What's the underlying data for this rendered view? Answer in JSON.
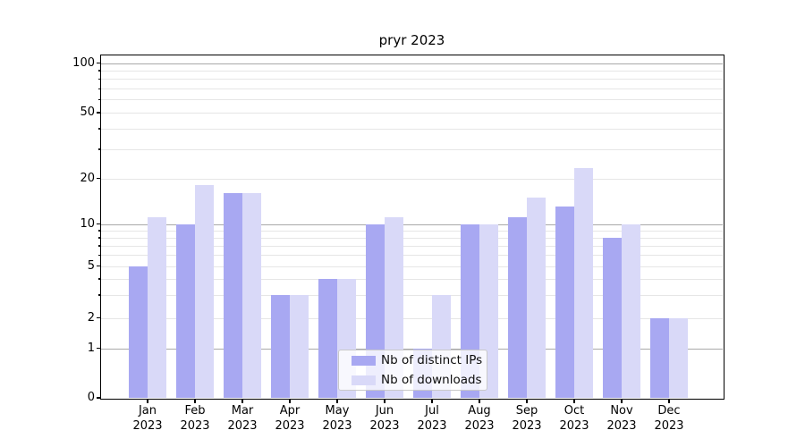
{
  "chart_data": {
    "type": "bar",
    "title": "pryr 2023",
    "categories": [
      "Jan 2023",
      "Feb 2023",
      "Mar 2023",
      "Apr 2023",
      "May 2023",
      "Jun 2023",
      "Jul 2023",
      "Aug 2023",
      "Sep 2023",
      "Oct 2023",
      "Nov 2023",
      "Dec 2023"
    ],
    "x_tick_months": [
      "Jan",
      "Feb",
      "Mar",
      "Apr",
      "May",
      "Jun",
      "Jul",
      "Aug",
      "Sep",
      "Oct",
      "Nov",
      "Dec"
    ],
    "x_tick_year": "2023",
    "series": [
      {
        "name": "Nb of distinct IPs",
        "color": "#a8a8f2",
        "values": [
          5,
          10,
          16,
          3,
          4,
          10,
          1,
          10,
          11,
          13,
          8,
          2
        ]
      },
      {
        "name": "Nb of downloads",
        "color": "#d9d9f8",
        "values": [
          11,
          18,
          16,
          3,
          4,
          11,
          3,
          10,
          15,
          23,
          10,
          2
        ]
      }
    ],
    "y_axis": {
      "scale": "log-like (linear below 1)",
      "tick_labels": [
        "100",
        "50",
        "20",
        "10",
        "5",
        "2",
        "1",
        "0"
      ],
      "tick_values": [
        100,
        50,
        20,
        10,
        5,
        2,
        1,
        0
      ],
      "major_grid_values": [
        1,
        10,
        100
      ],
      "labeled_minor_values": [
        2,
        5,
        20,
        50
      ],
      "minor_grid_values": [
        3,
        4,
        6,
        7,
        8,
        9,
        30,
        40,
        60,
        70,
        80,
        90
      ],
      "ylim": [
        0,
        112
      ]
    },
    "xlabel": "",
    "ylabel": "",
    "grid": true,
    "legend_position": "lower center"
  },
  "colors": {
    "major_grid": "#a9a9a9",
    "minor_grid": "#e6e6e6",
    "axis": "#000000",
    "background": "#ffffff"
  }
}
